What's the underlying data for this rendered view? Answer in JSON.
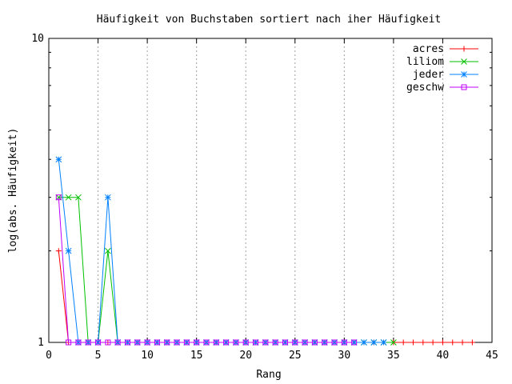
{
  "chart_data": {
    "type": "line",
    "title": "Häufigkeit von Buchstaben sortiert nach iher Häufigkeit",
    "xlabel": "Rang",
    "ylabel": "log(abs. Häufigkeit)",
    "xlim": [
      0,
      45
    ],
    "ylim": [
      1,
      10
    ],
    "y_scale": "log",
    "xticks": [
      0,
      5,
      10,
      15,
      20,
      25,
      30,
      35,
      40,
      45
    ],
    "yticks": [
      1,
      10
    ],
    "grid": "x",
    "legend_position": "top-right",
    "series": [
      {
        "name": "acres",
        "color": "#ff0000",
        "marker": "plus",
        "x": [
          1,
          2,
          3,
          4,
          5,
          6,
          7,
          8,
          9,
          10,
          11,
          12,
          13,
          14,
          15,
          16,
          17,
          18,
          19,
          20,
          21,
          22,
          23,
          24,
          25,
          26,
          27,
          28,
          29,
          30,
          31,
          32,
          33,
          34,
          35,
          36,
          37,
          38,
          39,
          40,
          41,
          42,
          43
        ],
        "y": [
          2,
          1,
          1,
          1,
          1,
          1,
          1,
          1,
          1,
          1,
          1,
          1,
          1,
          1,
          1,
          1,
          1,
          1,
          1,
          1,
          1,
          1,
          1,
          1,
          1,
          1,
          1,
          1,
          1,
          1,
          1,
          1,
          1,
          1,
          1,
          1,
          1,
          1,
          1,
          1,
          1,
          1,
          1
        ]
      },
      {
        "name": "liliom",
        "color": "#00c000",
        "marker": "cross",
        "x": [
          1,
          2,
          3,
          4,
          5,
          6,
          7,
          8,
          9,
          10,
          11,
          12,
          13,
          14,
          15,
          16,
          17,
          18,
          19,
          20,
          21,
          22,
          23,
          24,
          25,
          26,
          27,
          28,
          29,
          30,
          31,
          32,
          33,
          34,
          35
        ],
        "y": [
          3,
          3,
          3,
          1,
          1,
          2,
          1,
          1,
          1,
          1,
          1,
          1,
          1,
          1,
          1,
          1,
          1,
          1,
          1,
          1,
          1,
          1,
          1,
          1,
          1,
          1,
          1,
          1,
          1,
          1,
          1,
          1,
          1,
          1,
          1
        ]
      },
      {
        "name": "jeder",
        "color": "#0080ff",
        "marker": "star",
        "x": [
          1,
          2,
          3,
          4,
          5,
          6,
          7,
          8,
          9,
          10,
          11,
          12,
          13,
          14,
          15,
          16,
          17,
          18,
          19,
          20,
          21,
          22,
          23,
          24,
          25,
          26,
          27,
          28,
          29,
          30,
          31,
          32,
          33,
          34
        ],
        "y": [
          4,
          2,
          1,
          1,
          1,
          3,
          1,
          1,
          1,
          1,
          1,
          1,
          1,
          1,
          1,
          1,
          1,
          1,
          1,
          1,
          1,
          1,
          1,
          1,
          1,
          1,
          1,
          1,
          1,
          1,
          1,
          1,
          1,
          1
        ]
      },
      {
        "name": "geschw",
        "color": "#c000ff",
        "marker": "square",
        "x": [
          1,
          2,
          3,
          4,
          5,
          6,
          7,
          8,
          9,
          10,
          11,
          12,
          13,
          14,
          15,
          16,
          17,
          18,
          19,
          20,
          21,
          22,
          23,
          24,
          25,
          26,
          27,
          28,
          29,
          30,
          31
        ],
        "y": [
          3,
          1,
          1,
          1,
          1,
          1,
          1,
          1,
          1,
          1,
          1,
          1,
          1,
          1,
          1,
          1,
          1,
          1,
          1,
          1,
          1,
          1,
          1,
          1,
          1,
          1,
          1,
          1,
          1,
          1,
          1
        ]
      }
    ]
  }
}
